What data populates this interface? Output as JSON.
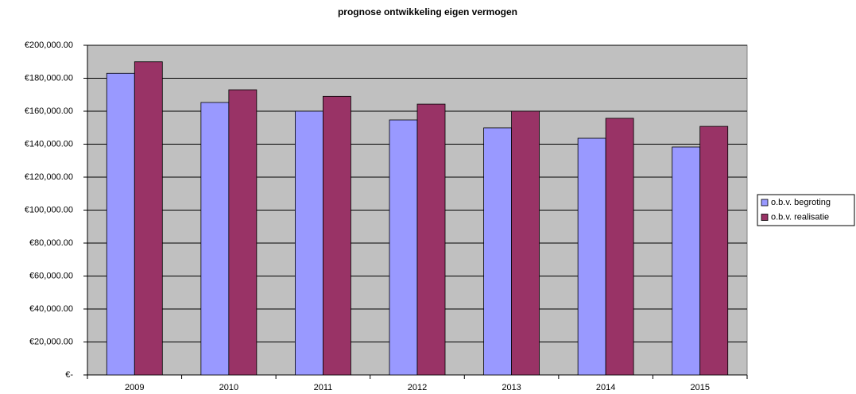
{
  "chart_data": {
    "type": "bar",
    "title": "prognose ontwikkeling eigen vermogen",
    "categories": [
      "2009",
      "2010",
      "2011",
      "2012",
      "2013",
      "2014",
      "2015"
    ],
    "series": [
      {
        "name": "o.b.v. begroting",
        "color": "#9999ff",
        "values": [
          183000,
          165300,
          160000,
          154700,
          149900,
          143600,
          138300
        ]
      },
      {
        "name": "o.b.v. realisatie",
        "color": "#993366",
        "values": [
          190000,
          173000,
          169000,
          164300,
          160000,
          155700,
          150800
        ]
      }
    ],
    "ylim": [
      0,
      200000
    ],
    "yticks": [
      {
        "value": 0,
        "label": "€-"
      },
      {
        "value": 20000,
        "label": "€20,000.00"
      },
      {
        "value": 40000,
        "label": "€40,000.00"
      },
      {
        "value": 60000,
        "label": "€60,000.00"
      },
      {
        "value": 80000,
        "label": "€80,000.00"
      },
      {
        "value": 100000,
        "label": "€100,000.00"
      },
      {
        "value": 120000,
        "label": "€120,000.00"
      },
      {
        "value": 140000,
        "label": "€140,000.00"
      },
      {
        "value": 160000,
        "label": "€160,000.00"
      },
      {
        "value": 180000,
        "label": "€180,000.00"
      },
      {
        "value": 200000,
        "label": "€200,000.00"
      }
    ],
    "grid": true,
    "legend": "right",
    "plot_background": "#c0c0c0"
  }
}
